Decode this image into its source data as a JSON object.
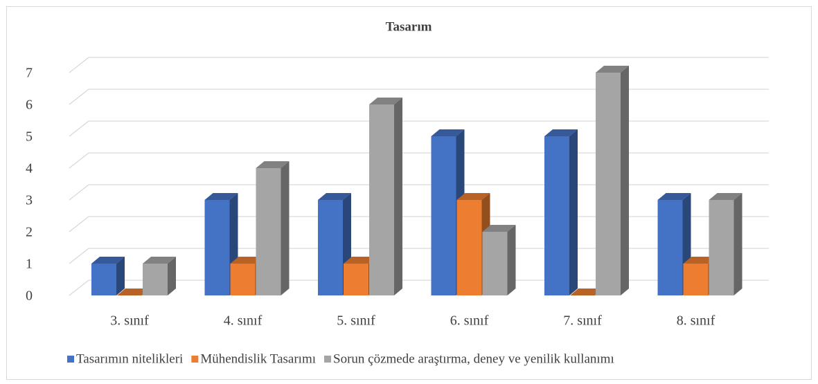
{
  "chart_data": {
    "type": "bar3d",
    "title": "Tasarım",
    "categories": [
      "3. sınıf",
      "4. sınıf",
      "5. sınıf",
      "6. sınıf",
      "7. sınıf",
      "8. sınıf"
    ],
    "series": [
      {
        "name": "Tasarımın nitelikleri",
        "color": "#4472c4",
        "values": [
          1,
          3,
          3,
          5,
          5,
          3
        ]
      },
      {
        "name": "Mühendislik Tasarımı",
        "color": "#ed7d31",
        "values": [
          0,
          1,
          1,
          3,
          0,
          1
        ]
      },
      {
        "name": "Sorun çözmede araştırma, deney ve yenilik kullanımı",
        "color": "#a5a5a5",
        "values": [
          1,
          4,
          6,
          2,
          7,
          3
        ]
      }
    ],
    "ylim": [
      0,
      7
    ],
    "yticks": [
      0,
      1,
      2,
      3,
      4,
      5,
      6,
      7
    ],
    "grid": true,
    "legend": "bottom"
  }
}
